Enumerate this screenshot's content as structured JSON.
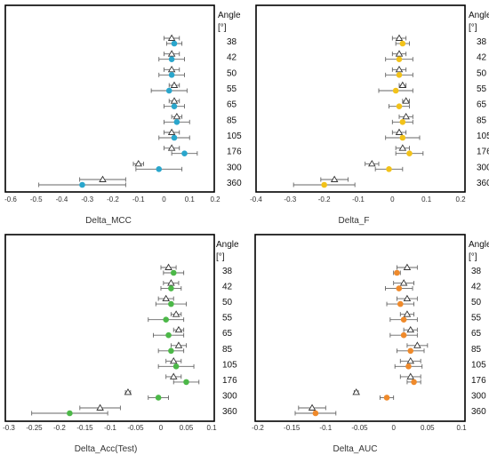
{
  "angle_header": "Angle",
  "unit_label": "[°]",
  "colors": {
    "mcc": "#2aa6cc",
    "f": "#f2c21a",
    "acc": "#4cb848",
    "auc": "#ef8a2b",
    "open_marker": "#ffffff",
    "error_bar": "#666666",
    "frame": "#000000"
  },
  "chart_data": [
    {
      "type": "scatter",
      "xlabel": "Delta_MCC",
      "xlim": [
        -0.6,
        0.2
      ],
      "xticks": [
        -0.6,
        -0.5,
        -0.4,
        -0.3,
        -0.2,
        -0.1,
        0,
        0.1,
        0.2
      ],
      "xtick_labels": [
        "-0.6",
        "-0.5",
        "-0.4",
        "-0.3",
        "-0.2",
        "-0.1",
        "0",
        "0.1",
        "0.2"
      ],
      "angles": [
        "38",
        "42",
        "50",
        "55",
        "65",
        "85",
        "105",
        "176",
        "300",
        "360"
      ],
      "series": [
        {
          "marker": "triangle-open",
          "values": [
            0.03,
            0.03,
            0.03,
            0.04,
            0.04,
            0.05,
            0.03,
            0.03,
            -0.1,
            -0.24
          ],
          "errors": [
            0.03,
            0.03,
            0.03,
            0.02,
            0.02,
            0.02,
            0.03,
            0.03,
            0.02,
            0.09
          ]
        },
        {
          "marker": "circle-filled",
          "values": [
            0.04,
            0.03,
            0.03,
            0.02,
            0.04,
            0.05,
            0.04,
            0.08,
            -0.02,
            -0.32
          ],
          "errors": [
            0.03,
            0.05,
            0.05,
            0.07,
            0.04,
            0.05,
            0.06,
            0.05,
            0.09,
            0.17
          ]
        }
      ]
    },
    {
      "type": "scatter",
      "xlabel": "Delta_F",
      "xlim": [
        -0.4,
        0.2
      ],
      "xticks": [
        -0.4,
        -0.3,
        -0.2,
        -0.1,
        0,
        0.1,
        0.2
      ],
      "xtick_labels": [
        "-0.4",
        "-0.3",
        "-0.2",
        "-0.1",
        "0",
        "0.1",
        "0.2"
      ],
      "angles": [
        "38",
        "42",
        "50",
        "55",
        "65",
        "85",
        "105",
        "176",
        "300",
        "360"
      ],
      "series": [
        {
          "marker": "triangle-open",
          "values": [
            0.02,
            0.02,
            0.02,
            0.03,
            0.04,
            0.04,
            0.02,
            0.03,
            -0.06,
            -0.17
          ],
          "errors": [
            0.02,
            0.02,
            0.02,
            0.01,
            0.01,
            0.02,
            0.02,
            0.02,
            0.02,
            0.04
          ]
        },
        {
          "marker": "circle-filled",
          "values": [
            0.03,
            0.02,
            0.02,
            0.01,
            0.02,
            0.03,
            0.03,
            0.05,
            -0.01,
            -0.2
          ],
          "errors": [
            0.02,
            0.04,
            0.04,
            0.05,
            0.03,
            0.03,
            0.05,
            0.04,
            0.04,
            0.09
          ]
        }
      ]
    },
    {
      "type": "scatter",
      "xlabel": "Delta_Acc(Test)",
      "xlim": [
        -0.3,
        0.1
      ],
      "xticks": [
        -0.3,
        -0.25,
        -0.2,
        -0.15,
        -0.1,
        -0.05,
        0,
        0.05,
        0.1
      ],
      "xtick_labels": [
        "-0.3",
        "-0.25",
        "-0.2",
        "-0.15",
        "-0.1",
        "-0.05",
        "0",
        "0.05",
        "0.1"
      ],
      "angles": [
        "38",
        "42",
        "50",
        "55",
        "65",
        "85",
        "105",
        "176",
        "300",
        "360"
      ],
      "series": [
        {
          "marker": "triangle-open",
          "values": [
            0.015,
            0.02,
            0.01,
            0.03,
            0.035,
            0.035,
            0.025,
            0.025,
            -0.065,
            -0.12
          ],
          "errors": [
            0.015,
            0.015,
            0.015,
            0.01,
            0.01,
            0.015,
            0.015,
            0.015,
            0.005,
            0.04
          ]
        },
        {
          "marker": "circle-filled",
          "values": [
            0.025,
            0.02,
            0.02,
            0.01,
            0.015,
            0.02,
            0.03,
            0.05,
            -0.005,
            -0.18
          ],
          "errors": [
            0.02,
            0.02,
            0.03,
            0.035,
            0.03,
            0.025,
            0.035,
            0.025,
            0.02,
            0.075
          ]
        }
      ]
    },
    {
      "type": "scatter",
      "xlabel": "Delta_AUC",
      "xlim": [
        -0.2,
        0.1
      ],
      "xticks": [
        -0.2,
        -0.15,
        -0.1,
        -0.05,
        0,
        0.05,
        0.1
      ],
      "xtick_labels": [
        "-0.2",
        "-0.15",
        "-0.1",
        "-0.05",
        "0",
        "0.05",
        "0.1"
      ],
      "angles": [
        "38",
        "42",
        "50",
        "55",
        "65",
        "85",
        "105",
        "176",
        "300",
        "360"
      ],
      "series": [
        {
          "marker": "triangle-open",
          "values": [
            0.02,
            0.015,
            0.02,
            0.02,
            0.025,
            0.035,
            0.025,
            0.025,
            -0.055,
            -0.12
          ],
          "errors": [
            0.015,
            0.015,
            0.015,
            0.01,
            0.01,
            0.015,
            0.015,
            0.015,
            0.003,
            0.02
          ]
        },
        {
          "marker": "circle-filled",
          "values": [
            0.005,
            0.008,
            0.01,
            0.015,
            0.015,
            0.025,
            0.022,
            0.03,
            -0.01,
            -0.115
          ],
          "errors": [
            0.005,
            0.02,
            0.02,
            0.02,
            0.02,
            0.02,
            0.02,
            0.01,
            0.01,
            0.03
          ]
        }
      ]
    }
  ]
}
